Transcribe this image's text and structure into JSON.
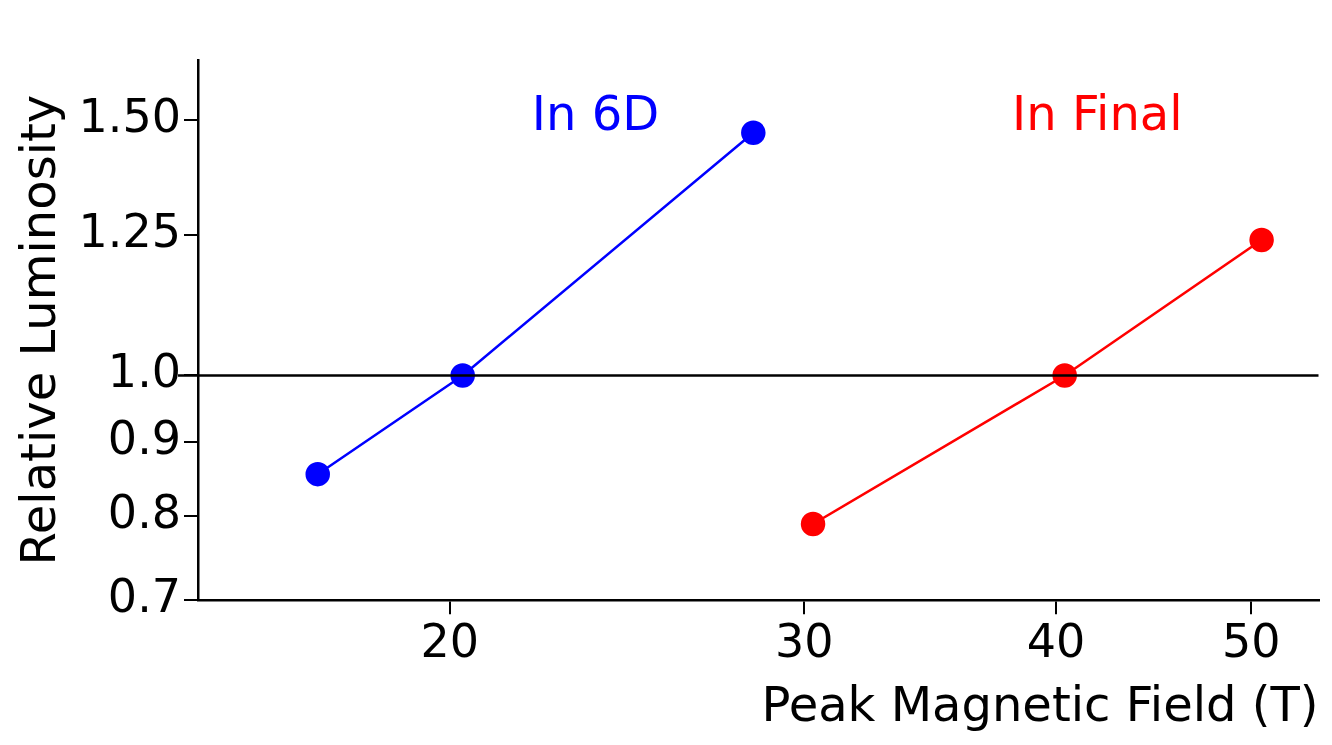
{
  "chart_data": {
    "type": "line",
    "xlabel": "Peak Magnetic Field (T)",
    "ylabel": "Relative Luminosity",
    "log": "xy",
    "legend": false,
    "grid": false,
    "marker": "circle",
    "xlim": [
      15,
      54
    ],
    "xticks": [
      20,
      30,
      40,
      50
    ],
    "ylim": [
      0.7,
      1.65
    ],
    "yticks": [
      0.7,
      0.8,
      0.9,
      {
        "value": 1.0,
        "label": "1.0"
      },
      1.25,
      {
        "value": 1.5,
        "label": "1.50"
      }
    ],
    "series": [
      {
        "name": "In 6D",
        "color": "#0000ff",
        "x": [
          17.2,
          20.3,
          28.3
        ],
        "values": [
          0.855,
          1.0,
          1.47
        ]
      },
      {
        "name": "In Final",
        "color": "#ff0000",
        "x": [
          30.3,
          40.4,
          50.6
        ],
        "values": [
          0.79,
          1.0,
          1.24
        ]
      }
    ],
    "ref_lines": [
      {
        "axis": "y",
        "value": 1.0,
        "color": "#000000"
      }
    ]
  }
}
